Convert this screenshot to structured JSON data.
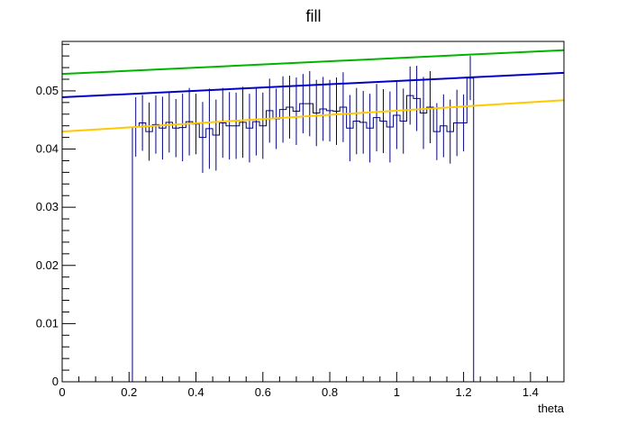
{
  "chart_data": {
    "type": "line",
    "title": "fill",
    "xlabel": "theta",
    "ylabel": "",
    "xlim": [
      0,
      1.5
    ],
    "ylim": [
      0,
      0.0585
    ],
    "grid": false,
    "x_ticks": [
      0,
      0.2,
      0.4,
      0.6,
      0.8,
      1,
      1.2,
      1.4
    ],
    "x_tick_labels": [
      "0",
      "0.2",
      "0.4",
      "0.6",
      "0.8",
      "1",
      "1.2",
      "1.4"
    ],
    "y_ticks": [
      0,
      0.01,
      0.02,
      0.03,
      0.04,
      0.05
    ],
    "y_tick_labels": [
      "0",
      "0.01",
      "0.02",
      "0.03",
      "0.04",
      "0.05"
    ],
    "histogram": {
      "color": "#00007f",
      "bin_edges": [
        0.21,
        0.23,
        0.25,
        0.27,
        0.29,
        0.31,
        0.33,
        0.35,
        0.37,
        0.39,
        0.41,
        0.43,
        0.45,
        0.47,
        0.49,
        0.51,
        0.53,
        0.55,
        0.57,
        0.59,
        0.61,
        0.63,
        0.65,
        0.67,
        0.69,
        0.71,
        0.73,
        0.75,
        0.77,
        0.79,
        0.81,
        0.83,
        0.85,
        0.87,
        0.89,
        0.91,
        0.93,
        0.95,
        0.97,
        0.99,
        1.01,
        1.03,
        1.05,
        1.07,
        1.09,
        1.11,
        1.13,
        1.15,
        1.17,
        1.19,
        1.21,
        1.23
      ],
      "values": [
        0.0438,
        0.0445,
        0.043,
        0.0442,
        0.0436,
        0.0446,
        0.0436,
        0.0437,
        0.0447,
        0.0443,
        0.042,
        0.0435,
        0.0424,
        0.0445,
        0.044,
        0.044,
        0.0446,
        0.0436,
        0.0447,
        0.044,
        0.0466,
        0.0452,
        0.0468,
        0.0472,
        0.0465,
        0.0478,
        0.0478,
        0.0462,
        0.0469,
        0.0466,
        0.0465,
        0.0472,
        0.0436,
        0.0448,
        0.0446,
        0.0436,
        0.0454,
        0.0448,
        0.0438,
        0.0458,
        0.0448,
        0.0492,
        0.0487,
        0.0462,
        0.0472,
        0.043,
        0.044,
        0.043,
        0.0445,
        0.0445,
        0.0522
      ],
      "errors": [
        0.0051,
        0.0048,
        0.005,
        0.005,
        0.0054,
        0.0052,
        0.005,
        0.0058,
        0.0058,
        0.0052,
        0.0061,
        0.0069,
        0.0061,
        0.006,
        0.0058,
        0.0057,
        0.0061,
        0.0059,
        0.0058,
        0.0057,
        0.0055,
        0.0052,
        0.0057,
        0.0054,
        0.0058,
        0.0051,
        0.0056,
        0.0057,
        0.0055,
        0.0053,
        0.0058,
        0.006,
        0.0057,
        0.0057,
        0.0054,
        0.0059,
        0.0058,
        0.0055,
        0.0061,
        0.0058,
        0.0056,
        0.005,
        0.0056,
        0.0062,
        0.0062,
        0.0049,
        0.0054,
        0.0055,
        0.0057,
        0.0049,
        0.0038
      ],
      "left_edge_from": 0.0438,
      "right_edge_from": 0.0522
    },
    "series": [
      {
        "color": "#00b400",
        "x": [
          0,
          1.5
        ],
        "values": [
          0.0529,
          0.057
        ]
      },
      {
        "color": "#0000c8",
        "x": [
          0,
          1.5
        ],
        "values": [
          0.0489,
          0.0531
        ]
      },
      {
        "color": "#ffc800",
        "x": [
          0,
          1.5
        ],
        "values": [
          0.043,
          0.0484
        ]
      }
    ]
  }
}
